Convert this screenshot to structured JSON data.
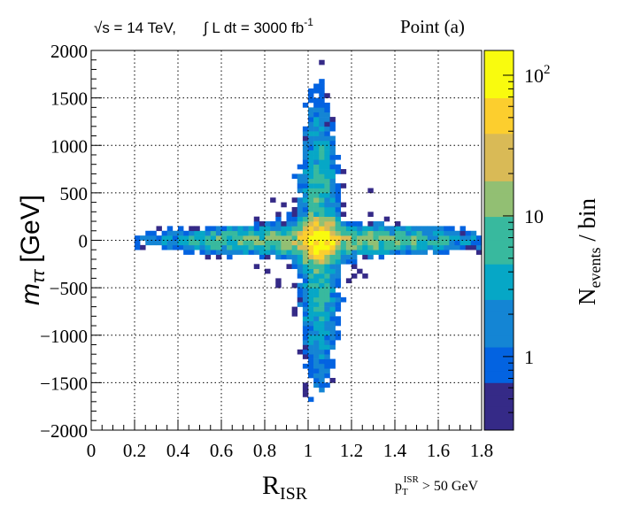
{
  "header": {
    "energy_label": "√s = 14 TeV,",
    "lumi_label": "∫ L dt = 3000 fb",
    "lumi_exp": "-1",
    "point_label": "Point (a)"
  },
  "cut_label": {
    "main": "p",
    "sub": "T",
    "sup": "ISR",
    "rest": " > 50 GeV"
  },
  "chart_data": {
    "type": "heatmap",
    "xlabel": {
      "main": "R",
      "sub": "ISR"
    },
    "ylabel": {
      "main": "m",
      "sub": "ττ",
      "unit": " [GeV]"
    },
    "zlabel": {
      "main": "N",
      "sub": "events",
      "rest": " / bin"
    },
    "x_range": [
      0,
      1.8
    ],
    "y_range": [
      -2000,
      2000
    ],
    "x_ticks": [
      "0",
      "0.2",
      "0.4",
      "0.6",
      "0.8",
      "1",
      "1.2",
      "1.4",
      "1.6",
      "1.8"
    ],
    "y_ticks": [
      "2000",
      "1500",
      "1000",
      "500",
      "0",
      "−500",
      "−1000",
      "−1500",
      "−2000"
    ],
    "z_scale": "log",
    "z_range": [
      0.3,
      150
    ],
    "z_ticks": [
      "1",
      "10",
      "10"
    ],
    "z_tick_exp": "2",
    "grid": true,
    "palette": [
      "#352a87",
      "#0363e1",
      "#1485d4",
      "#06a7c6",
      "#38b99e",
      "#92bf73",
      "#d9ba56",
      "#fcce2e",
      "#f9fb0e"
    ],
    "structure": "cross-shaped distribution; peak near R_ISR ≈ 1.05, m_ττ ≈ 0 GeV; vertical band at R_ISR ≈ 1, horizontal band at m_ττ ≈ 0"
  }
}
